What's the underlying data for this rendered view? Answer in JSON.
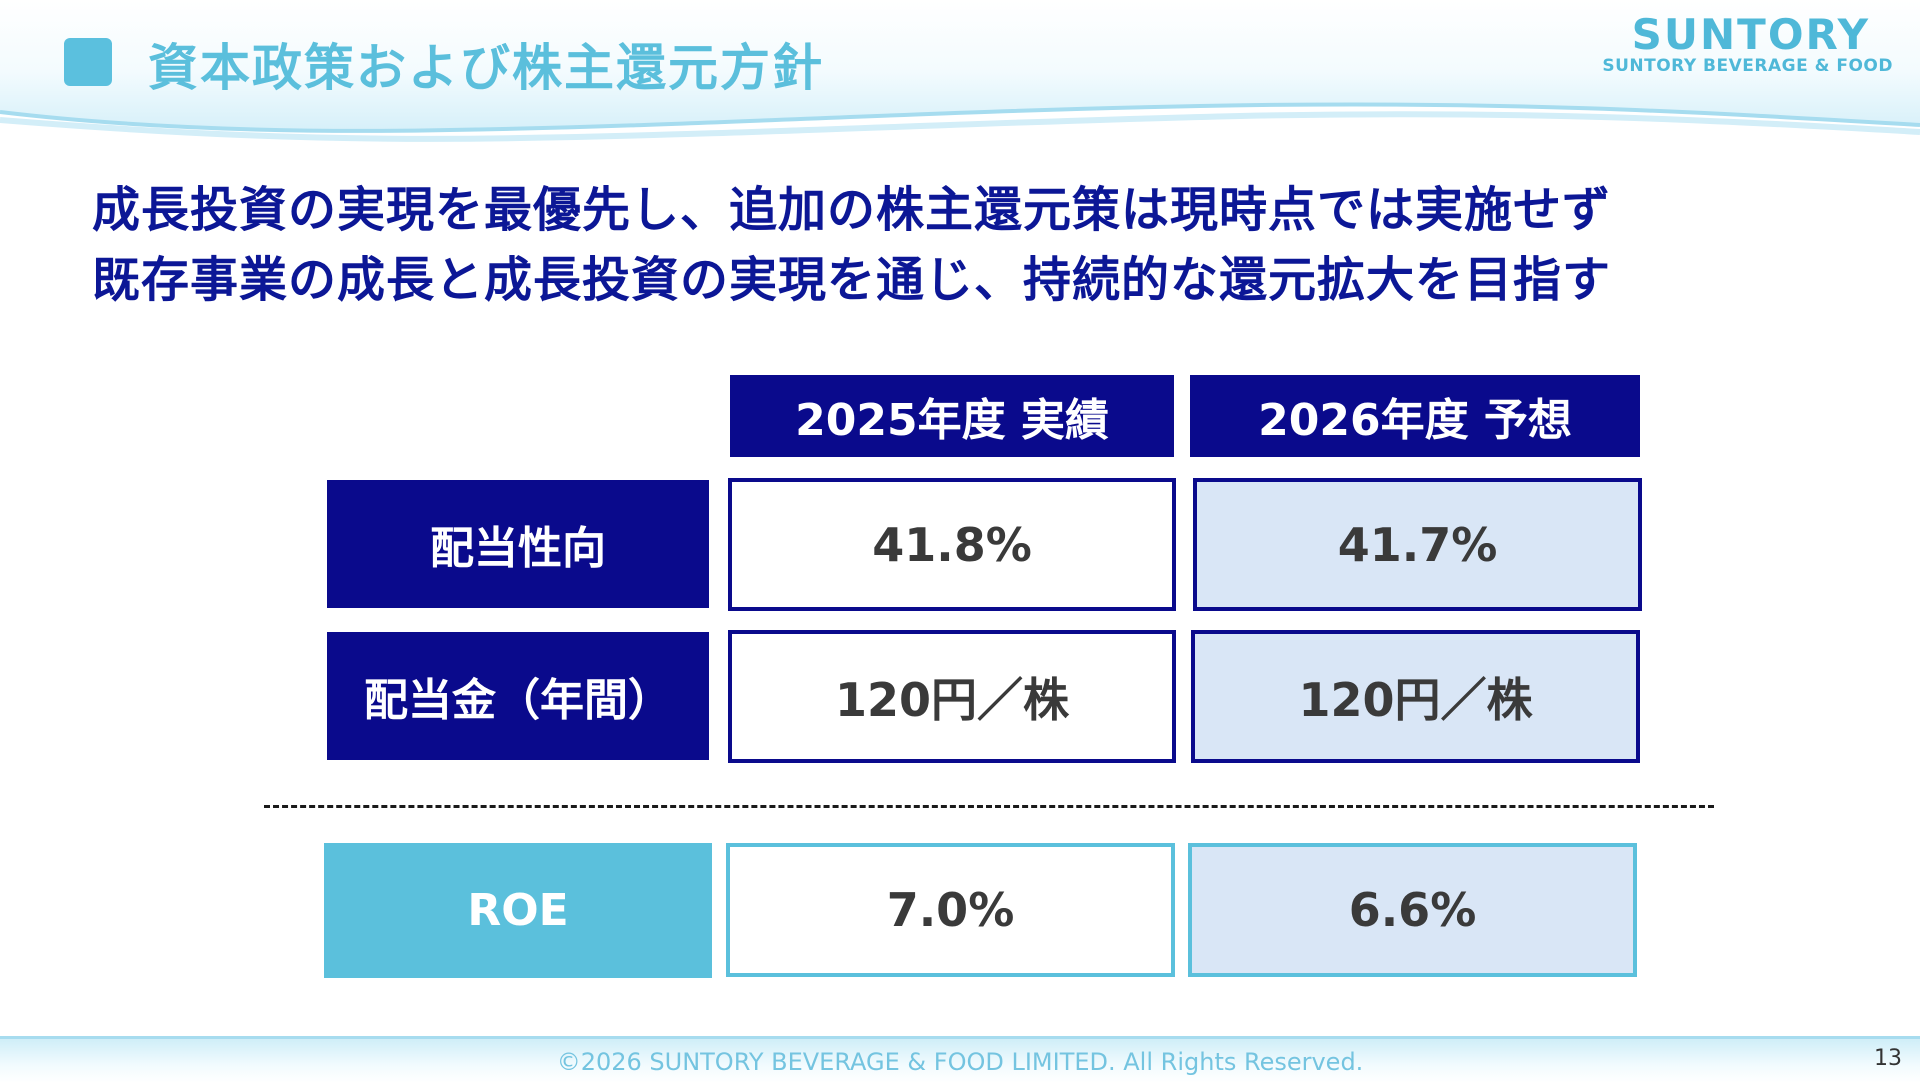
{
  "header": {
    "title": "資本政策および株主還元方針",
    "logo_main": "SUNTORY",
    "logo_sub": "SUNTORY BEVERAGE & FOOD",
    "logo_color": "#4fb8d8"
  },
  "headline": {
    "line1": "成長投資の実現を最優先し、追加の株主還元策は現時点では実施せず",
    "line2": "既存事業の成長と成長投資の実現を通じ、持続的な還元拡大を目指す"
  },
  "table": {
    "columns": [
      "2025年度 実績",
      "2026年度 予想"
    ],
    "rows": [
      {
        "label": "配当性向",
        "actual": "41.8%",
        "forecast": "41.7%"
      },
      {
        "label": "配当金（年間）",
        "actual": "120円／株",
        "forecast": "120円／株"
      },
      {
        "label": "ROE",
        "actual": "7.0%",
        "forecast": "6.6%"
      }
    ],
    "colors": {
      "dark_navy": "#0a0a8c",
      "light_blue": "#5bc0dc",
      "forecast_fill": "#d9e6f6"
    }
  },
  "footer": {
    "copyright": "©2026 SUNTORY BEVERAGE & FOOD LIMITED. All Rights Reserved.",
    "page_number": "13"
  }
}
